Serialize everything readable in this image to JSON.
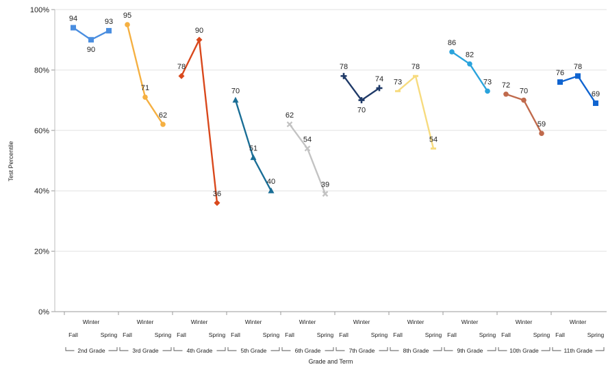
{
  "chart_data": {
    "type": "line",
    "xlabel": "Grade and Term",
    "ylabel": "Test Percentile",
    "ylim": [
      0,
      100
    ],
    "yticks": [
      "0%",
      "20%",
      "40%",
      "60%",
      "80%",
      "100%"
    ],
    "terms": [
      "Fall",
      "Winter",
      "Spring"
    ],
    "grid": "horizontal",
    "series": [
      {
        "name": "2nd Grade",
        "color": "#4a8ee0",
        "marker": "square",
        "values": [
          94,
          90,
          93
        ]
      },
      {
        "name": "3rd Grade",
        "color": "#f5b042",
        "marker": "circle",
        "values": [
          95,
          71,
          62
        ]
      },
      {
        "name": "4th Grade",
        "color": "#d9481c",
        "marker": "diamond",
        "values": [
          78,
          90,
          36
        ]
      },
      {
        "name": "5th Grade",
        "color": "#1a6e96",
        "marker": "triangle",
        "values": [
          70,
          51,
          40
        ]
      },
      {
        "name": "6th Grade",
        "color": "#c3c3c3",
        "marker": "x",
        "values": [
          62,
          54,
          39
        ]
      },
      {
        "name": "7th Grade",
        "color": "#1f3a68",
        "marker": "star",
        "values": [
          78,
          70,
          74
        ]
      },
      {
        "name": "8th Grade",
        "color": "#f7db7e",
        "marker": "dash",
        "values": [
          73,
          78,
          54
        ]
      },
      {
        "name": "9th Grade",
        "color": "#2aa3dc",
        "marker": "circle",
        "values": [
          86,
          82,
          73
        ]
      },
      {
        "name": "10th Grade",
        "color": "#c06a4c",
        "marker": "circle",
        "values": [
          72,
          70,
          59
        ]
      },
      {
        "name": "11th Grade",
        "color": "#1064d0",
        "marker": "square",
        "values": [
          76,
          78,
          69
        ]
      }
    ]
  }
}
